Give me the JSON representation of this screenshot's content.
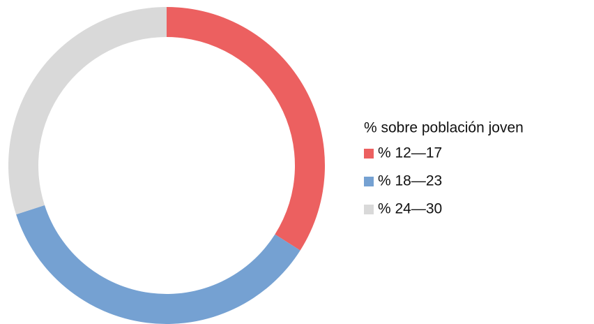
{
  "chart_data": {
    "type": "donut",
    "legend_title": "% sobre población joven",
    "categories": [
      "% 12—17",
      "% 18—23",
      "% 24—30"
    ],
    "values": [
      34,
      36,
      30
    ],
    "colors": [
      "#ec6060",
      "#75a1d2",
      "#d9d9d9"
    ],
    "legend": "right"
  }
}
